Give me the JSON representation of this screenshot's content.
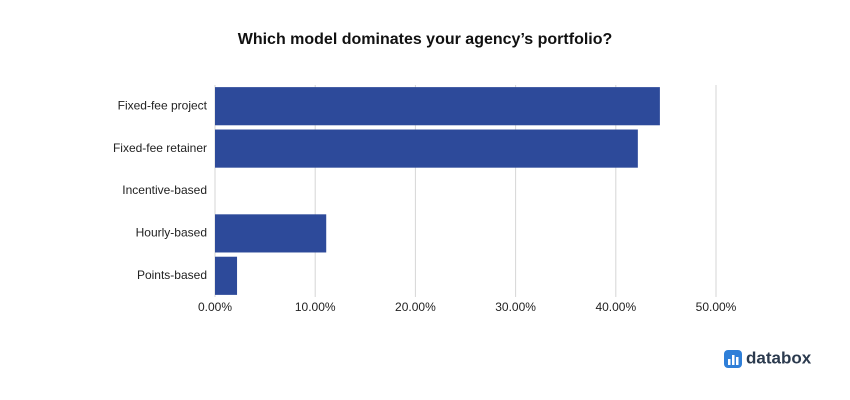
{
  "chart_data": {
    "type": "bar",
    "orientation": "horizontal",
    "title": "Which model dominates your agency’s portfolio?",
    "categories": [
      "Fixed-fee project",
      "Fixed-fee retainer",
      "Incentive-based",
      "Hourly-based",
      "Points-based"
    ],
    "values": [
      44.4,
      42.2,
      0,
      11.1,
      2.2
    ],
    "color": "#2d4a9a",
    "xlim": [
      0,
      50
    ],
    "xticks": [
      {
        "value": 0,
        "label": "0.00%"
      },
      {
        "value": 10,
        "label": "10.00%"
      },
      {
        "value": 20,
        "label": "20.00%"
      },
      {
        "value": 30,
        "label": "30.00%"
      },
      {
        "value": 40,
        "label": "40.00%"
      },
      {
        "value": 50,
        "label": "50.00%"
      }
    ],
    "grid": true
  },
  "brand": "databox"
}
